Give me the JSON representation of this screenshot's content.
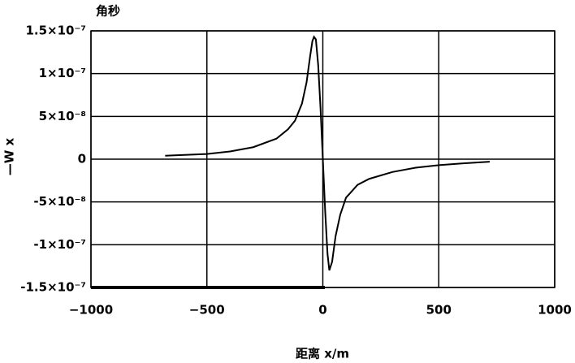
{
  "chart_data": {
    "type": "line",
    "y_label": "—W x",
    "unit": "角秒",
    "x_label": "距离 x/m",
    "xlim": [
      -1000,
      1000
    ],
    "xticks": [
      {
        "value": -1000,
        "label": "−1000"
      },
      {
        "value": -500,
        "label": "−500"
      },
      0,
      500,
      1000
    ],
    "ylim": [
      -1.5e-07,
      1.5e-07
    ],
    "yticks": [
      {
        "value": -1.5e-07,
        "label": "-1.5×10⁻⁷"
      },
      {
        "value": -1e-07,
        "label": "-1×10⁻⁷"
      },
      {
        "value": -5e-08,
        "label": "-5×10⁻⁸"
      },
      0,
      {
        "value": 5e-08,
        "label": "5×10⁻⁸"
      },
      {
        "value": 1e-07,
        "label": "1×10⁻⁷"
      },
      {
        "value": 1.5e-07,
        "label": "1.5×10⁻⁷"
      }
    ],
    "grid": true,
    "series": [
      {
        "color": "#000000",
        "x": [
          -680,
          -500,
          -400,
          -300,
          -200,
          -150,
          -120,
          -90,
          -70,
          -55,
          -45,
          -38,
          -30,
          -20,
          -10,
          0,
          10,
          20,
          28,
          40,
          55,
          75,
          100,
          150,
          200,
          300,
          400,
          500,
          600,
          720
        ],
        "values": [
          4e-09,
          6e-09,
          9e-09,
          1.4e-08,
          2.4e-08,
          3.5e-08,
          4.5e-08,
          6.5e-08,
          9e-08,
          1.2e-07,
          1.38e-07,
          1.43e-07,
          1.4e-07,
          1.1e-07,
          6e-08,
          0,
          -6e-08,
          -1.1e-07,
          -1.3e-07,
          -1.2e-07,
          -9e-08,
          -6.5e-08,
          -4.5e-08,
          -3e-08,
          -2.3e-08,
          -1.5e-08,
          -1e-08,
          -7e-09,
          -5e-09,
          -3e-09
        ]
      }
    ]
  }
}
